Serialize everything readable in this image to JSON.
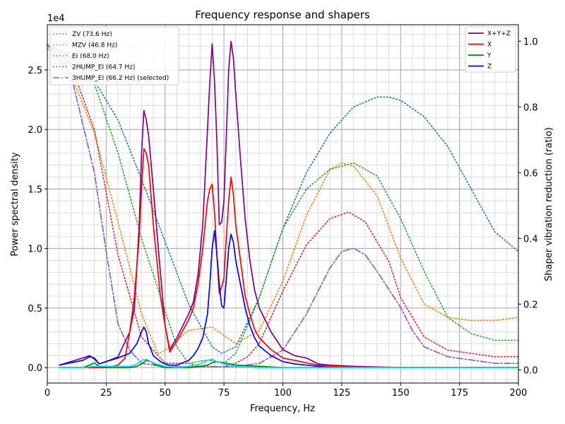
{
  "chart_data": {
    "type": "line",
    "title": "Frequency response and shapers",
    "xlabel": "Frequency, Hz",
    "ylabel": "Power spectral density",
    "y2label": "Shaper vibration reduction (ratio)",
    "y_offset_label": "1e4",
    "xlim": [
      0,
      200
    ],
    "ylim": [
      -0.13,
      2.88
    ],
    "y2lim": [
      -0.04,
      1.05
    ],
    "x_ticks": [
      0,
      25,
      50,
      75,
      100,
      125,
      150,
      175,
      200
    ],
    "y_ticks": [
      0.0,
      0.5,
      1.0,
      1.5,
      2.0,
      2.5
    ],
    "y_tick_labels": [
      "0.0",
      "0.5",
      "1.0",
      "1.5",
      "2.0",
      "2.5"
    ],
    "y2_ticks": [
      0.0,
      0.2,
      0.4,
      0.6,
      0.8,
      1.0
    ],
    "y2_tick_labels": [
      "0.0",
      "0.2",
      "0.4",
      "0.6",
      "0.8",
      "1.0"
    ],
    "grid": true,
    "legend_shapers_position": "top-left",
    "legend_psd_position": "top-right",
    "psd_series": [
      {
        "name": "X+Y+Z",
        "color": "#800080",
        "x": [
          5,
          10,
          15,
          18,
          20,
          22,
          25,
          30,
          35,
          37,
          39,
          40,
          41,
          42,
          43,
          45,
          48,
          50,
          52,
          55,
          60,
          62,
          64,
          66,
          68,
          69,
          70,
          71,
          72,
          73,
          74,
          75,
          76,
          77,
          78,
          79,
          80,
          82,
          84,
          86,
          88,
          90,
          95,
          100,
          105,
          110,
          115,
          120,
          130,
          150,
          200
        ],
        "y": [
          0.02,
          0.05,
          0.08,
          0.1,
          0.07,
          0.03,
          0.05,
          0.09,
          0.3,
          0.5,
          1.2,
          1.8,
          2.16,
          2.08,
          1.95,
          1.5,
          0.8,
          0.35,
          0.15,
          0.25,
          0.45,
          0.55,
          0.78,
          1.2,
          2.0,
          2.4,
          2.72,
          2.4,
          1.9,
          1.2,
          1.22,
          1.4,
          1.95,
          2.5,
          2.74,
          2.6,
          2.3,
          1.75,
          1.25,
          0.9,
          0.65,
          0.5,
          0.3,
          0.15,
          0.1,
          0.08,
          0.03,
          0.02,
          0.01,
          0.0,
          0.0
        ]
      },
      {
        "name": "X",
        "color": "#ff0000",
        "x": [
          5,
          20,
          25,
          30,
          33,
          35,
          37,
          39,
          40,
          41,
          42,
          43,
          45,
          48,
          50,
          52,
          55,
          60,
          62,
          64,
          66,
          68,
          69,
          70,
          71,
          72,
          73,
          74,
          75,
          76,
          77,
          78,
          79,
          80,
          82,
          84,
          86,
          88,
          90,
          95,
          100,
          105,
          110,
          115,
          120,
          130,
          150,
          200
        ],
        "y": [
          0.0,
          0.0,
          0.0,
          0.02,
          0.08,
          0.3,
          0.6,
          1.1,
          1.5,
          1.84,
          1.8,
          1.7,
          1.2,
          0.6,
          0.35,
          0.13,
          0.22,
          0.4,
          0.5,
          0.7,
          1.0,
          1.4,
          1.5,
          1.54,
          1.3,
          0.95,
          0.62,
          0.68,
          0.75,
          1.1,
          1.4,
          1.6,
          1.45,
          1.2,
          0.9,
          0.6,
          0.45,
          0.32,
          0.25,
          0.15,
          0.08,
          0.06,
          0.04,
          0.02,
          0.01,
          0.0,
          0.0,
          0.0
        ]
      },
      {
        "name": "Y",
        "color": "#008000",
        "x": [
          5,
          10,
          15,
          18,
          20,
          22,
          25,
          30,
          35,
          38,
          40,
          42,
          44,
          46,
          50,
          55,
          60,
          65,
          68,
          70,
          72,
          75,
          80,
          90,
          100,
          110,
          120,
          130,
          150,
          200
        ],
        "y": [
          0.0,
          0.0,
          0.0,
          0.02,
          0.04,
          0.01,
          0.0,
          0.0,
          0.0,
          0.01,
          0.03,
          0.06,
          0.05,
          0.02,
          0.0,
          0.0,
          0.0,
          0.01,
          0.02,
          0.04,
          0.05,
          0.04,
          0.02,
          0.01,
          0.0,
          0.0,
          0.0,
          0.0,
          0.0,
          0.0
        ]
      },
      {
        "name": "Z",
        "color": "#0000ff",
        "x": [
          5,
          10,
          15,
          18,
          20,
          22,
          25,
          30,
          35,
          38,
          40,
          41,
          42,
          43,
          45,
          48,
          50,
          52,
          55,
          60,
          62,
          64,
          66,
          68,
          69,
          70,
          71,
          72,
          73,
          74,
          75,
          76,
          77,
          78,
          79,
          80,
          82,
          84,
          86,
          88,
          90,
          95,
          100,
          105,
          110,
          115,
          120,
          130,
          150,
          200
        ],
        "y": [
          0.02,
          0.04,
          0.06,
          0.09,
          0.08,
          0.03,
          0.05,
          0.08,
          0.12,
          0.2,
          0.3,
          0.34,
          0.3,
          0.2,
          0.1,
          0.05,
          0.03,
          0.02,
          0.02,
          0.06,
          0.1,
          0.16,
          0.25,
          0.45,
          0.7,
          1.0,
          1.15,
          0.95,
          0.7,
          0.52,
          0.5,
          0.75,
          1.0,
          1.12,
          1.05,
          0.9,
          0.7,
          0.5,
          0.35,
          0.25,
          0.18,
          0.1,
          0.05,
          0.03,
          0.02,
          0.01,
          0.0,
          0.0,
          0.0,
          0.0
        ]
      },
      {
        "name": "",
        "color": "#00e0ff",
        "x": [
          5,
          10,
          15,
          20,
          25,
          30,
          35,
          38,
          40,
          42,
          45,
          50,
          55,
          60,
          65,
          68,
          70,
          72,
          75,
          80,
          90,
          100,
          120,
          150,
          200
        ],
        "y": [
          0.0,
          0.0,
          0.0,
          0.01,
          0.01,
          0.01,
          0.01,
          0.03,
          0.06,
          0.07,
          0.04,
          0.01,
          0.0,
          0.01,
          0.03,
          0.06,
          0.07,
          0.05,
          0.03,
          0.01,
          0.0,
          0.0,
          0.0,
          0.0,
          0.0
        ]
      }
    ],
    "shaper_series": [
      {
        "name": "ZV (73.6 Hz)",
        "color": "#1f77b4",
        "style": "dotted",
        "x": [
          0,
          10,
          20,
          30,
          40,
          50,
          60,
          70,
          74,
          80,
          90,
          100,
          110,
          120,
          130,
          140,
          145,
          150,
          160,
          170,
          180,
          190,
          200
        ],
        "y": [
          0.99,
          0.95,
          0.88,
          0.76,
          0.58,
          0.39,
          0.2,
          0.07,
          0.05,
          0.07,
          0.22,
          0.43,
          0.6,
          0.72,
          0.8,
          0.83,
          0.83,
          0.82,
          0.77,
          0.68,
          0.55,
          0.42,
          0.36
        ]
      },
      {
        "name": "MZV (46.8 Hz)",
        "color": "#ff7f0e",
        "style": "dotted",
        "x": [
          0,
          10,
          20,
          30,
          40,
          47,
          50,
          60,
          70,
          80,
          90,
          100,
          110,
          120,
          125,
          130,
          140,
          150,
          160,
          170,
          180,
          190,
          200
        ],
        "y": [
          0.98,
          0.9,
          0.72,
          0.45,
          0.17,
          0.05,
          0.06,
          0.12,
          0.13,
          0.08,
          0.12,
          0.27,
          0.47,
          0.61,
          0.63,
          0.62,
          0.53,
          0.34,
          0.2,
          0.16,
          0.15,
          0.15,
          0.16
        ]
      },
      {
        "name": "EI (68.0 Hz)",
        "color": "#2ca02c",
        "style": "dotted",
        "x": [
          0,
          10,
          20,
          30,
          40,
          50,
          55,
          60,
          68,
          75,
          80,
          90,
          100,
          110,
          120,
          130,
          140,
          150,
          160,
          170,
          180,
          190,
          200
        ],
        "y": [
          0.99,
          0.96,
          0.87,
          0.66,
          0.4,
          0.18,
          0.07,
          0.02,
          0.03,
          0.02,
          0.05,
          0.22,
          0.43,
          0.55,
          0.61,
          0.63,
          0.59,
          0.46,
          0.3,
          0.16,
          0.11,
          0.09,
          0.09
        ]
      },
      {
        "name": "2HUMP_EI (64.7 Hz)",
        "color": "#d62728",
        "style": "dotted",
        "x": [
          0,
          10,
          20,
          30,
          40,
          45,
          50,
          55,
          60,
          65,
          70,
          75,
          80,
          85,
          90,
          100,
          110,
          120,
          128,
          135,
          145,
          150,
          160,
          170,
          180,
          190,
          200
        ],
        "y": [
          0.99,
          0.93,
          0.73,
          0.35,
          0.1,
          0.06,
          0.02,
          0.02,
          0.02,
          0.01,
          0.01,
          0.01,
          0.02,
          0.04,
          0.08,
          0.24,
          0.38,
          0.46,
          0.48,
          0.45,
          0.33,
          0.22,
          0.1,
          0.06,
          0.05,
          0.04,
          0.04
        ]
      },
      {
        "name": "3HUMP_EI (66.2 Hz) (selected)",
        "color": "#9467bd",
        "style": "dashdot",
        "x": [
          0,
          10,
          20,
          25,
          30,
          35,
          40,
          50,
          60,
          70,
          80,
          90,
          100,
          110,
          120,
          125,
          130,
          135,
          140,
          150,
          155,
          160,
          170,
          180,
          190,
          200
        ],
        "y": [
          0.99,
          0.9,
          0.6,
          0.36,
          0.14,
          0.06,
          0.02,
          0.01,
          0.01,
          0.01,
          0.01,
          0.02,
          0.06,
          0.17,
          0.31,
          0.36,
          0.37,
          0.35,
          0.3,
          0.19,
          0.12,
          0.07,
          0.04,
          0.03,
          0.02,
          0.02
        ]
      }
    ]
  }
}
